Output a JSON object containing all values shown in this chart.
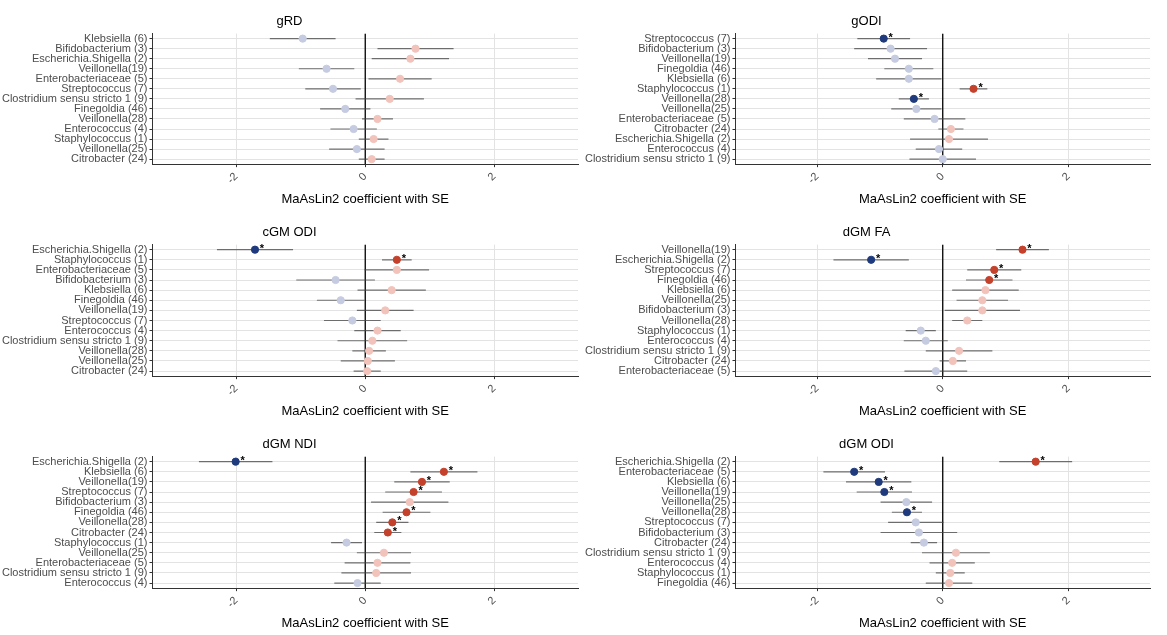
{
  "chart_data": [
    {
      "type": "scatter",
      "orientation": "horizontal",
      "title": "gRD",
      "xlabel": "MaAsLin2 coefficient with SE",
      "xlim": [
        -3.3,
        3.3
      ],
      "xticks": [
        -2,
        0,
        2
      ],
      "grid": true,
      "marker": "circle",
      "categories": [
        "Klebsiella (6)",
        "Bifidobacterium (3)",
        "Escherichia.Shigella (2)",
        "Veillonella(19)",
        "Enterobacteriaceae (5)",
        "Streptococcus (7)",
        "Clostridium sensu stricto 1 (9)",
        "Finegoldia (46)",
        "Veillonella(28)",
        "Enterococcus (4)",
        "Staphylococcus (1)",
        "Veillonella(25)",
        "Citrobacter (24)"
      ],
      "values": [
        -0.97,
        0.78,
        0.7,
        -0.6,
        0.54,
        -0.5,
        0.38,
        -0.31,
        0.19,
        -0.18,
        0.13,
        -0.13,
        0.1
      ],
      "errors": [
        0.51,
        0.59,
        0.6,
        0.43,
        0.49,
        0.43,
        0.53,
        0.39,
        0.24,
        0.36,
        0.23,
        0.43,
        0.2
      ],
      "colors": [
        "#c5cbe0",
        "#f2c3bb",
        "#f2c3bb",
        "#c5cbe0",
        "#f2c3bb",
        "#c5cbe0",
        "#f2c3bb",
        "#c5cbe0",
        "#f2c3bb",
        "#c5cbe0",
        "#f2c3bb",
        "#c5cbe0",
        "#f2c3bb"
      ],
      "ref_lines": [
        {
          "axis": "x",
          "value": 0,
          "color": "#000000"
        }
      ]
    },
    {
      "type": "scatter",
      "orientation": "horizontal",
      "title": "gODI",
      "xlabel": "MaAsLin2 coefficient with SE",
      "xlim": [
        -3.3,
        3.3
      ],
      "xticks": [
        -2,
        0,
        2
      ],
      "grid": true,
      "marker": "circle",
      "categories": [
        "Streptococcus (7)",
        "Bifidobacterium (3)",
        "Veillonella(19)",
        "Finegoldia (46)",
        "Klebsiella (6)",
        "Staphylococcus (1)",
        "Veillonella(28)",
        "Veillonella(25)",
        "Enterobacteriaceae (5)",
        "Citrobacter (24)",
        "Escherichia.Shigella (2)",
        "Enterococcus (4)",
        "Clostridium sensu stricto 1 (9)"
      ],
      "values": [
        -0.94,
        -0.83,
        -0.76,
        -0.54,
        -0.54,
        0.49,
        -0.46,
        -0.42,
        -0.13,
        0.13,
        0.1,
        -0.06,
        0.0
      ],
      "errors": [
        0.42,
        0.58,
        0.43,
        0.39,
        0.52,
        0.22,
        0.24,
        0.4,
        0.49,
        0.2,
        0.62,
        0.37,
        0.53
      ],
      "colors": [
        "#1f3b7d",
        "#c5cbe0",
        "#c5cbe0",
        "#c5cbe0",
        "#c5cbe0",
        "#c4412b",
        "#1f3b7d",
        "#c5cbe0",
        "#c5cbe0",
        "#f2c3bb",
        "#f2c3bb",
        "#c5cbe0",
        "#c5cbe0"
      ],
      "ref_lines": [
        {
          "axis": "x",
          "value": 0,
          "color": "#000000"
        }
      ],
      "value_labels": [
        "*",
        null,
        null,
        null,
        null,
        "*",
        "*",
        null,
        null,
        null,
        null,
        null,
        null
      ]
    },
    {
      "type": "scatter",
      "orientation": "horizontal",
      "title": "cGM ODI",
      "xlabel": "MaAsLin2 coefficient with SE",
      "xlim": [
        -3.3,
        3.3
      ],
      "xticks": [
        -2,
        0,
        2
      ],
      "grid": true,
      "marker": "circle",
      "categories": [
        "Escherichia.Shigella (2)",
        "Staphylococcus (1)",
        "Enterobacteriaceae (5)",
        "Bifidobacterium (3)",
        "Klebsiella (6)",
        "Finegoldia (46)",
        "Veillonella(19)",
        "Streptococcus (7)",
        "Enterococcus (4)",
        "Clostridium sensu stricto 1 (9)",
        "Veillonella(28)",
        "Veillonella(25)",
        "Citrobacter (24)"
      ],
      "values": [
        -1.71,
        0.49,
        0.49,
        -0.46,
        0.41,
        -0.38,
        0.31,
        -0.2,
        0.19,
        0.11,
        0.06,
        0.04,
        0.03
      ],
      "errors": [
        0.59,
        0.23,
        0.5,
        0.61,
        0.53,
        0.37,
        0.44,
        0.44,
        0.36,
        0.54,
        0.26,
        0.42,
        0.21
      ],
      "colors": [
        "#1f3b7d",
        "#c4412b",
        "#f2c3bb",
        "#c5cbe0",
        "#f2c3bb",
        "#c5cbe0",
        "#f2c3bb",
        "#c5cbe0",
        "#f2c3bb",
        "#f2c3bb",
        "#f2c3bb",
        "#f2c3bb",
        "#f2c3bb"
      ],
      "ref_lines": [
        {
          "axis": "x",
          "value": 0,
          "color": "#000000"
        }
      ],
      "value_labels": [
        "*",
        "*",
        null,
        null,
        null,
        null,
        null,
        null,
        null,
        null,
        null,
        null,
        null
      ]
    },
    {
      "type": "scatter",
      "orientation": "horizontal",
      "title": "dGM FA",
      "xlabel": "MaAsLin2 coefficient with SE",
      "xlim": [
        -3.3,
        3.3
      ],
      "xticks": [
        -2,
        0,
        2
      ],
      "grid": true,
      "marker": "circle",
      "categories": [
        "Veillonella(19)",
        "Escherichia.Shigella (2)",
        "Streptococcus (7)",
        "Finegoldia (46)",
        "Klebsiella (6)",
        "Veillonella(25)",
        "Bifidobacterium (3)",
        "Veillonella(28)",
        "Staphylococcus (1)",
        "Enterococcus (4)",
        "Clostridium sensu stricto 1 (9)",
        "Citrobacter (24)",
        "Enterobacteriaceae (5)"
      ],
      "values": [
        1.27,
        -1.14,
        0.82,
        0.74,
        0.68,
        0.63,
        0.63,
        0.39,
        -0.35,
        -0.27,
        0.26,
        0.16,
        -0.11
      ],
      "errors": [
        0.42,
        0.6,
        0.43,
        0.37,
        0.53,
        0.41,
        0.6,
        0.24,
        0.24,
        0.35,
        0.53,
        0.21,
        0.5
      ],
      "colors": [
        "#c4412b",
        "#1f3b7d",
        "#c4412b",
        "#c4412b",
        "#f2c3bb",
        "#f2c3bb",
        "#f2c3bb",
        "#f2c3bb",
        "#c5cbe0",
        "#c5cbe0",
        "#f2c3bb",
        "#f2c3bb",
        "#c5cbe0"
      ],
      "ref_lines": [
        {
          "axis": "x",
          "value": 0,
          "color": "#000000"
        }
      ],
      "value_labels": [
        "*",
        "*",
        "*",
        "*",
        null,
        null,
        null,
        null,
        null,
        null,
        null,
        null,
        null
      ]
    },
    {
      "type": "scatter",
      "orientation": "horizontal",
      "title": "dGM NDI",
      "xlabel": "MaAsLin2 coefficient with SE",
      "xlim": [
        -3.3,
        3.3
      ],
      "xticks": [
        -2,
        0,
        2
      ],
      "grid": true,
      "marker": "circle",
      "categories": [
        "Escherichia.Shigella (2)",
        "Klebsiella (6)",
        "Veillonella(19)",
        "Streptococcus (7)",
        "Bifidobacterium (3)",
        "Finegoldia (46)",
        "Veillonella(28)",
        "Citrobacter (24)",
        "Staphylococcus (1)",
        "Veillonella(25)",
        "Enterobacteriaceae (5)",
        "Clostridium sensu stricto 1 (9)",
        "Enterococcus (4)"
      ],
      "values": [
        -2.01,
        1.22,
        0.88,
        0.75,
        0.69,
        0.64,
        0.42,
        0.35,
        -0.29,
        0.29,
        0.19,
        0.17,
        -0.12
      ],
      "errors": [
        0.57,
        0.52,
        0.43,
        0.44,
        0.6,
        0.37,
        0.25,
        0.21,
        0.24,
        0.42,
        0.51,
        0.54,
        0.36
      ],
      "colors": [
        "#1f3b7d",
        "#c4412b",
        "#c4412b",
        "#c4412b",
        "#f2c3bb",
        "#c4412b",
        "#c4412b",
        "#c4412b",
        "#c5cbe0",
        "#f2c3bb",
        "#f2c3bb",
        "#f2c3bb",
        "#c5cbe0"
      ],
      "ref_lines": [
        {
          "axis": "x",
          "value": 0,
          "color": "#000000"
        }
      ],
      "value_labels": [
        "*",
        "*",
        "*",
        "*",
        null,
        "*",
        "*",
        "*",
        null,
        null,
        null,
        null,
        null
      ]
    },
    {
      "type": "scatter",
      "orientation": "horizontal",
      "title": "dGM ODI",
      "xlabel": "MaAsLin2 coefficient with SE",
      "xlim": [
        -3.3,
        3.3
      ],
      "xticks": [
        -2,
        0,
        2
      ],
      "grid": true,
      "marker": "circle",
      "categories": [
        "Escherichia.Shigella (2)",
        "Enterobacteriaceae (5)",
        "Klebsiella (6)",
        "Veillonella(19)",
        "Veillonella(25)",
        "Veillonella(28)",
        "Streptococcus (7)",
        "Bifidobacterium (3)",
        "Citrobacter (24)",
        "Clostridium sensu stricto 1 (9)",
        "Enterococcus (4)",
        "Staphylococcus (1)",
        "Finegoldia (46)"
      ],
      "values": [
        1.48,
        -1.41,
        -1.02,
        -0.93,
        -0.58,
        -0.57,
        -0.43,
        -0.38,
        -0.3,
        0.21,
        0.15,
        0.12,
        0.1
      ],
      "errors": [
        0.58,
        0.49,
        0.52,
        0.44,
        0.41,
        0.24,
        0.44,
        0.61,
        0.21,
        0.54,
        0.36,
        0.23,
        0.37
      ],
      "colors": [
        "#c4412b",
        "#1f3b7d",
        "#1f3b7d",
        "#1f3b7d",
        "#c5cbe0",
        "#1f3b7d",
        "#c5cbe0",
        "#c5cbe0",
        "#c5cbe0",
        "#f2c3bb",
        "#f2c3bb",
        "#f2c3bb",
        "#f2c3bb"
      ],
      "ref_lines": [
        {
          "axis": "x",
          "value": 0,
          "color": "#000000"
        }
      ],
      "value_labels": [
        "*",
        "*",
        "*",
        "*",
        null,
        "*",
        null,
        null,
        null,
        null,
        null,
        null,
        null
      ]
    }
  ]
}
